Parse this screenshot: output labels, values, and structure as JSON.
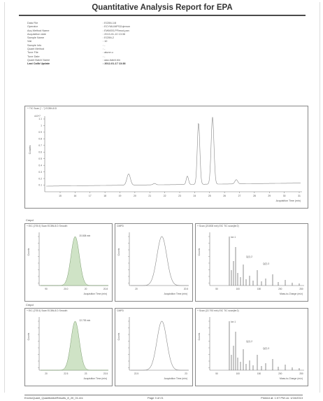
{
  "report": {
    "title": "Quantitative Analysis Report for EPA"
  },
  "meta": [
    {
      "label": "Data File",
      "value": "ECBN-1/8"
    },
    {
      "label": "Operator",
      "value": "ECYMLIMPSZvjemun"
    },
    {
      "label": "Acq Method Name",
      "value": "EWM3S-PFimod.pan"
    },
    {
      "label": "Acquisition date",
      "value": "2013-01-10 13:36"
    },
    {
      "label": "Sample Name",
      "value": "ECBN-2"
    },
    {
      "label": "Vial",
      "value": "10"
    },
    {
      "label": "Sample Info",
      "value": "-"
    },
    {
      "label": "Quant Method",
      "value": "-"
    },
    {
      "label": "Tune File",
      "value": "atune.u"
    },
    {
      "label": "Tune Date",
      "value": "-"
    },
    {
      "label": "Quant Batch Name",
      "value": "aaa-batch.bin"
    },
    {
      "label": "Last Calib Update",
      "value": "2012-01-17 13:38",
      "bold": true
    }
  ],
  "tic": {
    "header": "+ TIC Scan (\"...\") ECBN-8.D",
    "y_label": "Counts",
    "y_unit": "x10^7",
    "y_ticks": [
      "1.1",
      "1",
      "0.9",
      "0.8",
      "0.7",
      "0.6",
      "0.5",
      "0.4",
      "0.3",
      "0.2",
      "0.1"
    ],
    "x_ticks": [
      "15",
      "16",
      "17",
      "18",
      "19",
      "20",
      "21",
      "22",
      "23",
      "24",
      "25",
      "26",
      "27",
      "28",
      "29",
      "30",
      "31"
    ],
    "x_label": "Acquisition Time (min)"
  },
  "compounds": [
    {
      "section_label": "Cmpd",
      "eic_header": "+ EIC (278.0) Scan ECBN-8.D  Smooth",
      "rt_label": "20.808 min",
      "qual_header": "CMPD",
      "spec_header": "+ Scan (20.808 min) EIC  TIC scan(ler2)",
      "spec_labels": [
        "Ion 1",
        "Q(1) 2",
        "Q(2) 3"
      ],
      "x_label_eic": "Acquisition Time (min)",
      "x_label_spec": "Mass-to-Charge (m/z)",
      "eic_x_ticks": [
        "90",
        "20.0",
        "20",
        "20.8"
      ],
      "qual_x_ticks": [
        "20",
        "20.5"
      ],
      "spec_x_ticks": [
        "50",
        "100",
        "150",
        "200",
        "250"
      ]
    },
    {
      "section_label": "Cmpd",
      "eic_header": "+ EIC (278.0) Scan ECBN-8.D  Smooth",
      "rt_label": "22.793 min",
      "qual_header": "CMPD",
      "spec_header": "+ Scan (22.793 min) EIC  TIC scan(ler2)",
      "spec_labels": [
        "Ion 1",
        "Q(1) 2",
        "Q(2) 3"
      ],
      "x_label_eic": "Acquisition Time (min)",
      "x_label_spec": "Mass-to-Charge (m/z)",
      "eic_x_ticks": [
        "20",
        "22.5",
        "23",
        "23.5"
      ],
      "qual_x_ticks": [
        "22.5",
        "23"
      ],
      "spec_x_ticks": [
        "50",
        "100",
        "150",
        "200",
        "250"
      ]
    }
  ],
  "footer": {
    "left": "EnviroQuant_QuantitativeResults_8_20_01.rex",
    "center": "Page 3 of 21",
    "right": "Printed at: 1:07 PM on: 1/16/2013"
  }
}
